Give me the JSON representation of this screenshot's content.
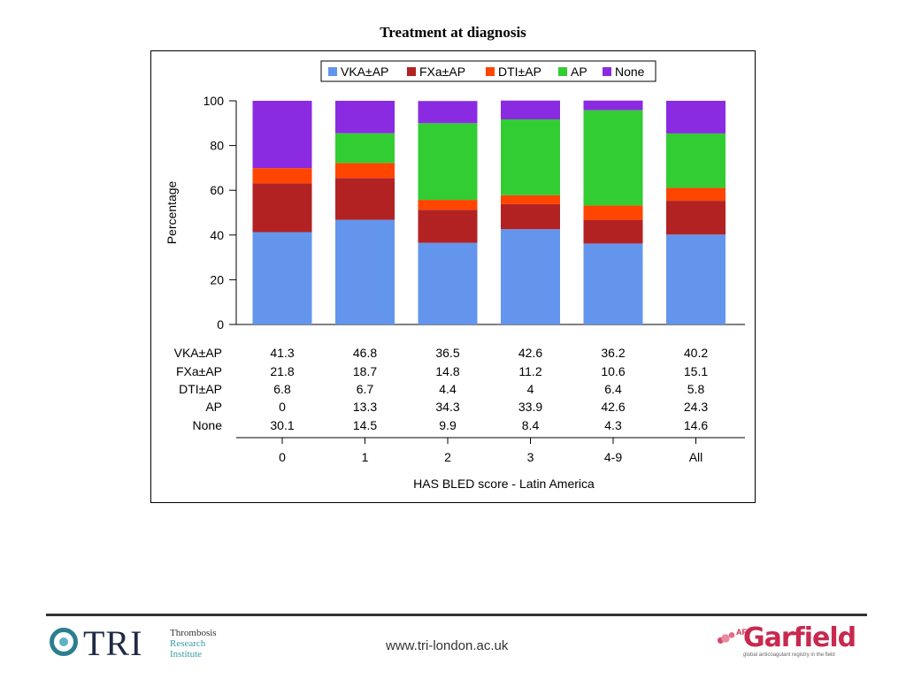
{
  "slide": {
    "title": "Treatment at diagnosis",
    "footer_url": "www.tri-london.ac.uk"
  },
  "logos": {
    "tri": {
      "mark": "TRI",
      "line1": "Thrombosis",
      "line2": "Research",
      "line3": "Institute"
    },
    "garfield": {
      "prefix": "AF",
      "name": "Garfield",
      "tagline": "global anticoagulant registry in the field"
    }
  },
  "chart_data": {
    "type": "bar",
    "stacked": true,
    "title": "",
    "xlabel": "HAS BLED score - Latin America",
    "ylabel": "Percentage",
    "ylim": [
      0,
      100
    ],
    "yticks": [
      0,
      20,
      40,
      60,
      80,
      100
    ],
    "categories": [
      "0",
      "1",
      "2",
      "3",
      "4-9",
      "All"
    ],
    "legend_position": "top",
    "series": [
      {
        "name": "VKA±AP",
        "color": "#6495ed",
        "values": [
          41.3,
          46.8,
          36.5,
          42.6,
          36.2,
          40.2
        ]
      },
      {
        "name": "FXa±AP",
        "color": "#b22222",
        "values": [
          21.8,
          18.7,
          14.8,
          11.2,
          10.6,
          15.1
        ]
      },
      {
        "name": "DTI±AP",
        "color": "#ff4500",
        "values": [
          6.8,
          6.7,
          4.4,
          4,
          6.4,
          5.8
        ]
      },
      {
        "name": "AP",
        "color": "#32cd32",
        "values": [
          0,
          13.3,
          34.3,
          33.9,
          42.6,
          24.3
        ]
      },
      {
        "name": "None",
        "color": "#8a2be2",
        "values": [
          30.1,
          14.5,
          9.9,
          8.4,
          4.3,
          14.6
        ]
      }
    ],
    "table_rows": [
      {
        "label": "VKA±AP",
        "values": [
          "41.3",
          "46.8",
          "36.5",
          "42.6",
          "36.2",
          "40.2"
        ]
      },
      {
        "label": "FXa±AP",
        "values": [
          "21.8",
          "18.7",
          "14.8",
          "11.2",
          "10.6",
          "15.1"
        ]
      },
      {
        "label": "DTI±AP",
        "values": [
          "6.8",
          "6.7",
          "4.4",
          "4",
          "6.4",
          "5.8"
        ]
      },
      {
        "label": "AP",
        "values": [
          "0",
          "13.3",
          "34.3",
          "33.9",
          "42.6",
          "24.3"
        ]
      },
      {
        "label": "None",
        "values": [
          "30.1",
          "14.5",
          "9.9",
          "8.4",
          "4.3",
          "14.6"
        ]
      }
    ]
  }
}
